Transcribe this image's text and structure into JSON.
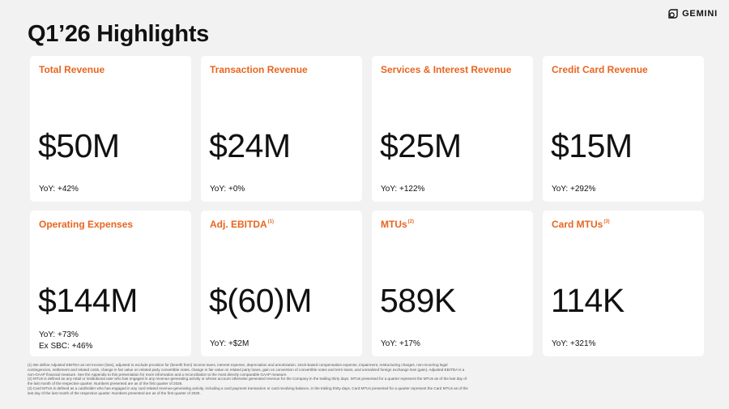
{
  "page": {
    "title": "Q1’26 Highlights",
    "logo_text": "GEMINI"
  },
  "colors": {
    "accent": "#e8651f",
    "background": "#f2f2f2",
    "card": "#ffffff",
    "text": "#111111"
  },
  "metrics": [
    {
      "label": "Total Revenue",
      "sup": "",
      "value": "$50M",
      "yoy": "YoY: +42%",
      "extra": ""
    },
    {
      "label": "Transaction Revenue",
      "sup": "",
      "value": "$24M",
      "yoy": "YoY: +0%",
      "extra": ""
    },
    {
      "label": "Services & Interest Revenue",
      "sup": "",
      "value": "$25M",
      "yoy": "YoY: +122%",
      "extra": ""
    },
    {
      "label": "Credit Card Revenue",
      "sup": "",
      "value": "$15M",
      "yoy": "YoY: +292%",
      "extra": ""
    },
    {
      "label": "Operating Expenses",
      "sup": "",
      "value": "$144M",
      "yoy": "YoY: +73%",
      "extra": "Ex SBC: +46%"
    },
    {
      "label": "Adj. EBITDA",
      "sup": "(1)",
      "value": "$(60)M",
      "yoy": "YoY: +$2M",
      "extra": ""
    },
    {
      "label": "MTUs",
      "sup": "(2)",
      "value": "589K",
      "yoy": "YoY: +17%",
      "extra": ""
    },
    {
      "label": "Card MTUs",
      "sup": "(3)",
      "value": "114K",
      "yoy": "YoY: +321%",
      "extra": ""
    }
  ],
  "footnotes": [
    "(1) We define Adjusted EBITDA as net income (loss), adjusted to exclude provision for (benefit from) income taxes, interest expense, depreciation and amortization, stock-based compensation expense, impairment, restructuring charges, non-recurring legal contingencies, settlement and related costs, change in fair value on related party convertible notes, change in fair value on related party loans, gain on conversion of convertible notes and term loans, and unrealized foreign exchange loss (gain). Adjusted EBITDA is a non-GAAP financial measure. See the Appendix to this presentation for more information and a reconciliation to the most directly comparable GAAP measure.",
    "(2) MTUs is defined as any retail or institutional user who has engaged in any revenue-generating activity or whose account otherwise generated revenue for the Company in the trailing thirty days. MTUs presented for a quarter represent the MTUs as of the last day of the last month of the respective quarter. Numbers presented are as of the first quarter of 2026.",
    "(3) Card MTUs is defined as a cardholder who has engaged in any card related revenue-generating activity, including a card payment transaction or card revolving balance, in the trailing thirty days. Card MTUs presented for a quarter represent the Card MTUs as of the last day of the last month of the respective quarter. Numbers presented are as of the first quarter of 2026."
  ]
}
